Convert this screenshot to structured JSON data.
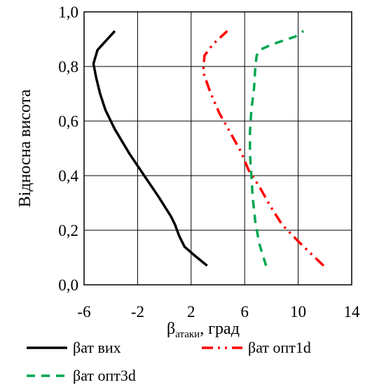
{
  "chart_data": {
    "type": "line",
    "xlabel_main": "β",
    "xlabel_sub": "атаки",
    "xlabel_rest": ", град",
    "ylabel": "Відносна висота",
    "xlim": [
      -6,
      14
    ],
    "ylim": [
      0.0,
      1.0
    ],
    "xticks": [
      -6,
      -2,
      2,
      6,
      10,
      14
    ],
    "xtick_labels": [
      "-6",
      "-2",
      "2",
      "6",
      "10",
      "14"
    ],
    "yticks": [
      0.0,
      0.2,
      0.4,
      0.6,
      0.8,
      1.0
    ],
    "ytick_labels": [
      "0,0",
      "0,2",
      "0,4",
      "0,6",
      "0,8",
      "1,0"
    ],
    "grid": true,
    "legend_position": "bottom",
    "series": [
      {
        "name": "βат вих",
        "color": "#000000",
        "dash": "solid",
        "x": [
          3.2,
          2.2,
          1.5,
          1.1,
          0.8,
          0.5,
          -0.4,
          -1.5,
          -2.6,
          -3.7,
          -4.4,
          -4.8,
          -5.1,
          -5.3,
          -5.0,
          -3.7
        ],
        "y": [
          0.07,
          0.11,
          0.14,
          0.18,
          0.22,
          0.25,
          0.32,
          0.4,
          0.48,
          0.57,
          0.64,
          0.7,
          0.76,
          0.81,
          0.86,
          0.93
        ]
      },
      {
        "name": "βат опт1d",
        "color": "#ff0000",
        "dash": "dash-dot-dot",
        "x": [
          11.9,
          10.2,
          8.8,
          7.9,
          7.1,
          6.3,
          5.7,
          4.9,
          4.1,
          3.4,
          2.9,
          3.0,
          3.6,
          4.7
        ],
        "y": [
          0.07,
          0.15,
          0.22,
          0.29,
          0.36,
          0.42,
          0.49,
          0.56,
          0.63,
          0.71,
          0.78,
          0.84,
          0.88,
          0.93
        ]
      },
      {
        "name": "βат опт3d",
        "color": "#00a651",
        "dash": "dashed",
        "x": [
          7.6,
          7.1,
          6.8,
          6.6,
          6.5,
          6.4,
          6.4,
          6.5,
          6.7,
          6.8,
          6.9,
          7.1,
          8.0,
          9.8,
          10.4
        ],
        "y": [
          0.07,
          0.15,
          0.23,
          0.32,
          0.4,
          0.48,
          0.56,
          0.64,
          0.72,
          0.8,
          0.84,
          0.86,
          0.88,
          0.91,
          0.93
        ]
      }
    ]
  }
}
